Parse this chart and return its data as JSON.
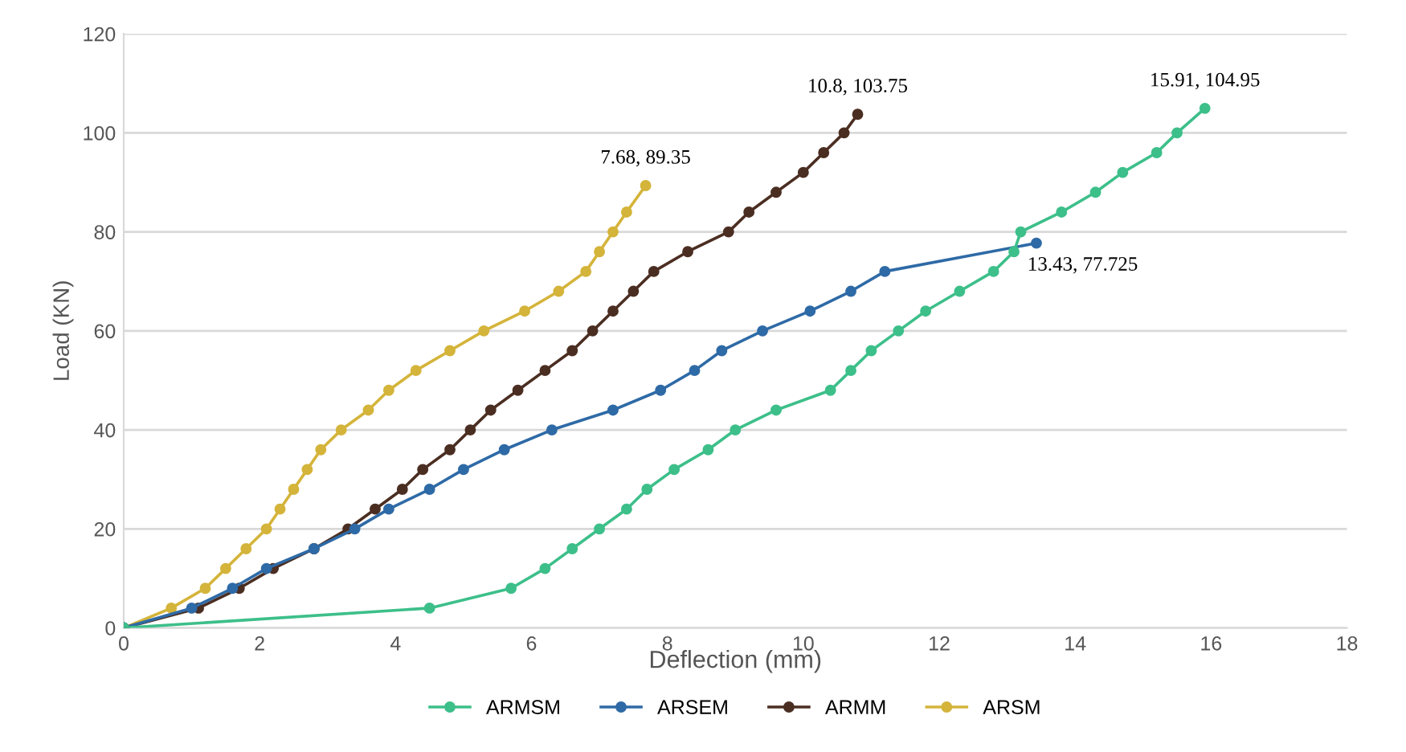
{
  "chart_data": {
    "type": "line",
    "xlabel": "Deflection (mm)",
    "ylabel": "Load (KN)",
    "xlim": [
      0,
      18
    ],
    "xticks": [
      0,
      2,
      4,
      6,
      8,
      10,
      12,
      14,
      16,
      18
    ],
    "ylim": [
      0,
      120
    ],
    "yticks": [
      0,
      20,
      40,
      60,
      80,
      100,
      120
    ],
    "grid": "y",
    "legend": "bottom",
    "marker": "circle",
    "line_style": "solid",
    "series": [
      {
        "name": "ARMSM",
        "color": "#3dbf8a",
        "x": [
          0,
          4.5,
          5.7,
          6.2,
          6.6,
          7.0,
          7.4,
          7.7,
          8.1,
          8.6,
          9.0,
          9.6,
          10.4,
          10.7,
          11.0,
          11.4,
          11.8,
          12.3,
          12.8,
          13.1,
          13.2,
          13.8,
          14.3,
          14.7,
          15.2,
          15.5,
          15.91
        ],
        "values": [
          0,
          4,
          8,
          12,
          16,
          20,
          24,
          28,
          32,
          36,
          40,
          44,
          48,
          52,
          56,
          60,
          64,
          68,
          72,
          76,
          80,
          84,
          88,
          92,
          96,
          100,
          104.95
        ]
      },
      {
        "name": "ARSEM",
        "color": "#2e6aa6",
        "x": [
          0,
          1.0,
          1.6,
          2.1,
          2.8,
          3.4,
          3.9,
          4.5,
          5.0,
          5.6,
          6.3,
          7.2,
          7.9,
          8.4,
          8.8,
          9.4,
          10.1,
          10.7,
          11.2,
          13.43
        ],
        "values": [
          0,
          4,
          8,
          12,
          16,
          20,
          24,
          28,
          32,
          36,
          40,
          44,
          48,
          52,
          56,
          60,
          64,
          68,
          72,
          77.725
        ]
      },
      {
        "name": "ARMM",
        "color": "#4b2e22",
        "x": [
          0,
          1.1,
          1.7,
          2.2,
          2.8,
          3.3,
          3.7,
          4.1,
          4.4,
          4.8,
          5.1,
          5.4,
          5.8,
          6.2,
          6.6,
          6.9,
          7.2,
          7.5,
          7.8,
          8.3,
          8.9,
          9.2,
          9.6,
          10.0,
          10.3,
          10.6,
          10.8
        ],
        "values": [
          0,
          4,
          8,
          12,
          16,
          20,
          24,
          28,
          32,
          36,
          40,
          44,
          48,
          52,
          56,
          60,
          64,
          68,
          72,
          76,
          80,
          84,
          88,
          92,
          96,
          100,
          103.75
        ]
      },
      {
        "name": "ARSM",
        "color": "#d4b43a",
        "x": [
          0,
          0.7,
          1.2,
          1.5,
          1.8,
          2.1,
          2.3,
          2.5,
          2.7,
          2.9,
          3.2,
          3.6,
          3.9,
          4.3,
          4.8,
          5.3,
          5.9,
          6.4,
          6.8,
          7.0,
          7.2,
          7.4,
          7.68
        ],
        "values": [
          0,
          4,
          8,
          12,
          16,
          20,
          24,
          28,
          32,
          36,
          40,
          44,
          48,
          52,
          56,
          60,
          64,
          68,
          72,
          76,
          80,
          84,
          89.35
        ]
      }
    ],
    "annotations": [
      {
        "text": "7.68, 89.35",
        "x": 7.68,
        "y": 89.35
      },
      {
        "text": "10.8, 103.75",
        "x": 10.8,
        "y": 103.75
      },
      {
        "text": "15.91, 104.95",
        "x": 15.91,
        "y": 104.95
      },
      {
        "text": "13.43, 77.725",
        "x": 13.43,
        "y": 77.725
      }
    ]
  }
}
